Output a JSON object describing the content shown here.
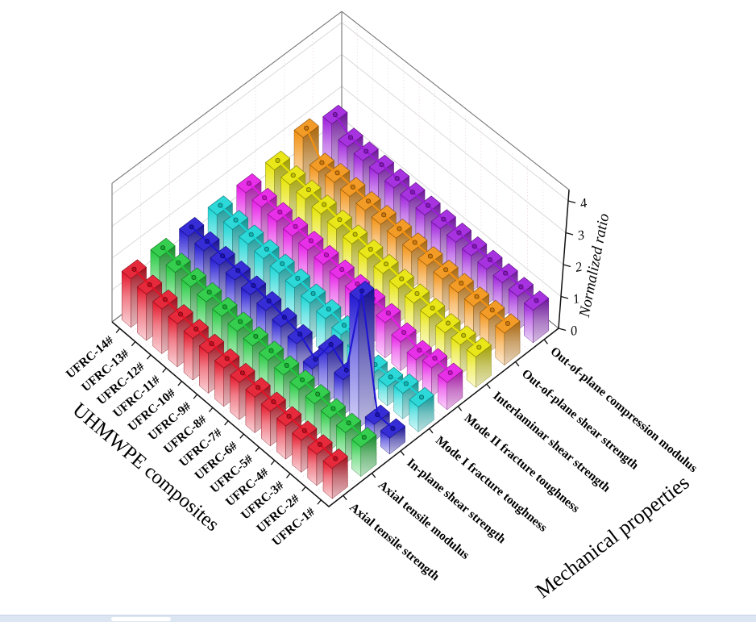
{
  "page": {
    "background": "#ffffff",
    "bottom_strip_color": "#dce6f2",
    "bottom_strip_border": "#c4d2e4"
  },
  "chart_data": {
    "type": "bar",
    "subtype": "3d-bar-with-trend-lines",
    "title": "",
    "xlabel": "UHMWPE composites",
    "ylabel": "Mechanical properties",
    "zlabel": "Normalized ratio",
    "categories": [
      "UFRC-1#",
      "UFRC-2#",
      "UFRC-3#",
      "UFRC-4#",
      "UFRC-5#",
      "UFRC-6#",
      "UFRC-7#",
      "UFRC-8#",
      "UFRC-9#",
      "UFRC-10#",
      "UFRC-11#",
      "UFRC-12#",
      "UFRC-13#",
      "UFRC-14#"
    ],
    "z_ticks": [
      0,
      1,
      2,
      3,
      4
    ],
    "zlim": [
      0,
      4.35
    ],
    "grid": true,
    "legend_position": "none",
    "series": [
      {
        "name": "Axial tensile strength",
        "color": "#e31226",
        "values": [
          0.95,
          0.98,
          1.0,
          1.04,
          1.08,
          1.12,
          1.16,
          1.2,
          1.25,
          1.3,
          1.35,
          1.4,
          1.45,
          1.52
        ]
      },
      {
        "name": "Axial tensile modulus",
        "color": "#1ec83b",
        "values": [
          0.92,
          0.96,
          1.0,
          1.04,
          1.08,
          1.12,
          1.17,
          1.21,
          1.26,
          1.31,
          1.36,
          1.41,
          1.46,
          1.52
        ]
      },
      {
        "name": "In-plane shear strength",
        "color": "#2016d2",
        "values": [
          0.5,
          0.52,
          4.0,
          1.1,
          1.5,
          0.62,
          1.0,
          1.12,
          1.22,
          1.3,
          1.36,
          1.41,
          1.46,
          1.5
        ]
      },
      {
        "name": "Mode I fracture toughness",
        "color": "#16d4d4",
        "values": [
          0.78,
          0.8,
          0.6,
          0.58,
          0.85,
          1.0,
          1.1,
          1.18,
          1.25,
          1.3,
          1.35,
          1.4,
          1.45,
          1.5
        ]
      },
      {
        "name": "Mode II fracture toughness",
        "color": "#e619e6",
        "values": [
          0.85,
          0.9,
          0.75,
          0.9,
          1.1,
          1.15,
          1.2,
          1.25,
          1.3,
          1.34,
          1.38,
          1.43,
          1.47,
          1.52
        ]
      },
      {
        "name": "Interlaminar shear strength",
        "color": "#e6e300",
        "values": [
          0.95,
          0.92,
          0.9,
          0.97,
          1.02,
          1.08,
          1.14,
          1.2,
          1.26,
          1.32,
          1.39,
          1.45,
          1.5,
          1.56
        ]
      },
      {
        "name": "Out-of-plane shear strength",
        "color": "#f2900f",
        "values": [
          1.0,
          1.02,
          1.04,
          1.06,
          1.08,
          1.1,
          1.13,
          1.16,
          1.19,
          1.22,
          1.26,
          1.3,
          1.22,
          1.9
        ]
      },
      {
        "name": "Out-of-plane compression modulus",
        "color": "#9c1cdb",
        "values": [
          1.02,
          1.05,
          1.08,
          1.1,
          1.12,
          1.15,
          1.17,
          1.2,
          1.22,
          1.25,
          1.28,
          1.3,
          1.33,
          1.65
        ]
      }
    ]
  }
}
